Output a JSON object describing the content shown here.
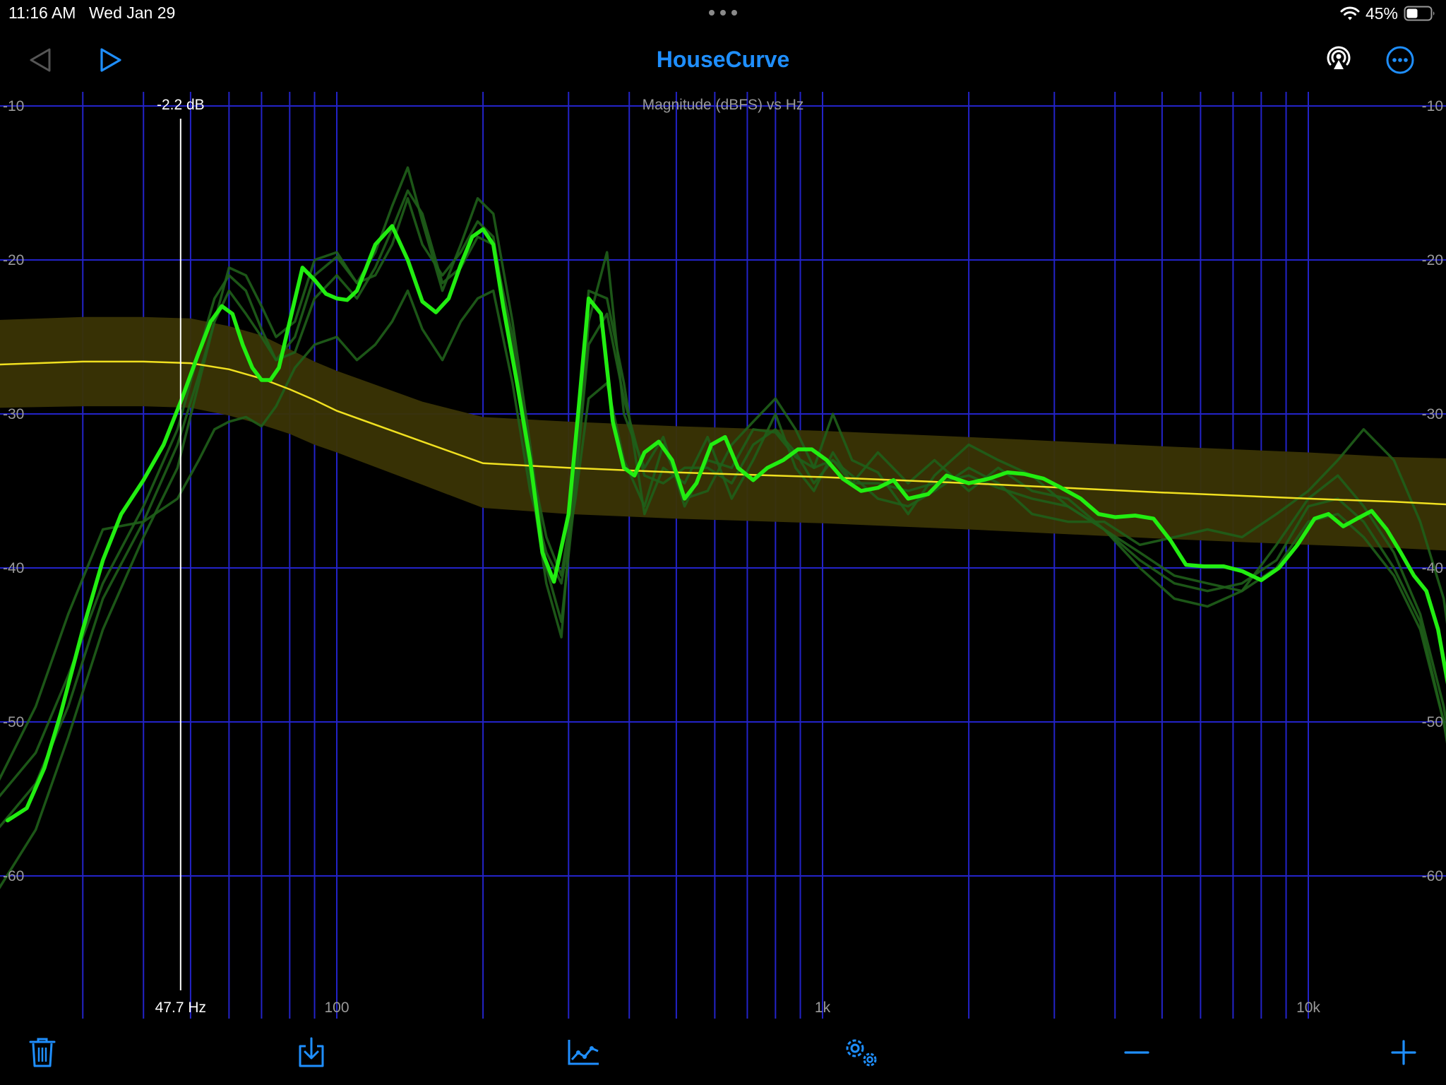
{
  "status_bar": {
    "time": "11:16 AM",
    "date": "Wed Jan 29",
    "battery": "45%"
  },
  "nav": {
    "title": "HouseCurve"
  },
  "icons": {
    "back": "back-triangle-icon",
    "play": "play-icon",
    "airplay": "airplay-icon",
    "more": "ellipsis-circle-icon",
    "delete": "trash-icon",
    "import": "import-tray-icon",
    "graph": "graph-icon",
    "settings": "settings-gears-icon",
    "zoom_out": "minus-icon",
    "zoom_in": "plus-icon"
  },
  "colors": {
    "accent": "#1f8fff",
    "grid": "#2323c8",
    "measurement": "#22ee11",
    "target": "#f0e020",
    "target_band": "#3a3405",
    "faded_measurements": "#1f5f1a"
  },
  "cursor": {
    "freq_label": "47.7 Hz",
    "db_label": "-2.2 dB"
  },
  "chart_data": {
    "type": "line",
    "title": "Magnitude (dBFS) vs Hz",
    "x_scale": "log",
    "xlim": [
      20,
      22000
    ],
    "ylim": [
      -67,
      -9
    ],
    "grid": true,
    "y_ticks": [
      "-10",
      "-20",
      "-30",
      "-40",
      "-50",
      "-60"
    ],
    "y_tick_values": [
      -10,
      -20,
      -30,
      -40,
      -50,
      -60
    ],
    "x_ticks": [
      "100",
      "1k",
      "10k"
    ],
    "x_tick_values": [
      100,
      1000,
      10000
    ],
    "cursor_hz": 47.7,
    "series": [
      {
        "role": "measurement",
        "x": [
          21,
          23,
          25,
          27,
          30,
          33,
          36,
          40,
          44,
          48,
          52,
          55,
          58,
          61,
          64,
          67,
          70,
          73,
          76,
          80,
          85,
          90,
          95,
          100,
          105,
          110,
          115,
          120,
          130,
          140,
          150,
          160,
          170,
          180,
          190,
          200,
          210,
          220,
          235,
          250,
          265,
          280,
          300,
          315,
          330,
          350,
          370,
          390,
          410,
          430,
          460,
          490,
          520,
          550,
          590,
          630,
          670,
          720,
          770,
          830,
          890,
          950,
          1020,
          1100,
          1200,
          1300,
          1400,
          1500,
          1650,
          1800,
          2000,
          2200,
          2400,
          2600,
          2850,
          3100,
          3400,
          3700,
          4000,
          4400,
          4800,
          5200,
          5600,
          6100,
          6700,
          7300,
          8000,
          8700,
          9500,
          10300,
          11000,
          11800,
          12600,
          13500,
          14500,
          15500,
          16500,
          17500,
          18500,
          19500,
          20500,
          22000
        ],
        "y": [
          -56.4,
          -55.6,
          -53.0,
          -49.5,
          -44.0,
          -39.5,
          -36.5,
          -34.3,
          -32.0,
          -29.0,
          -26.0,
          -24.0,
          -23.0,
          -23.5,
          -25.5,
          -27.0,
          -27.8,
          -27.8,
          -27.0,
          -24.0,
          -20.5,
          -21.3,
          -22.2,
          -22.5,
          -22.6,
          -22.0,
          -20.5,
          -19.0,
          -17.8,
          -20.0,
          -22.7,
          -23.4,
          -22.5,
          -20.3,
          -18.5,
          -18.0,
          -19.0,
          -23.0,
          -28.0,
          -33.0,
          -39.0,
          -40.9,
          -36.5,
          -29.5,
          -22.5,
          -23.5,
          -30.5,
          -33.5,
          -34.0,
          -32.5,
          -31.8,
          -33.0,
          -35.5,
          -34.5,
          -32.0,
          -31.5,
          -33.5,
          -34.3,
          -33.5,
          -33.0,
          -32.3,
          -32.3,
          -33.0,
          -34.2,
          -35.0,
          -34.8,
          -34.3,
          -35.5,
          -35.2,
          -34.0,
          -34.5,
          -34.2,
          -33.8,
          -33.9,
          -34.2,
          -34.8,
          -35.5,
          -36.5,
          -36.7,
          -36.6,
          -36.8,
          -38.2,
          -39.8,
          -39.9,
          -39.9,
          -40.2,
          -40.8,
          -40.0,
          -38.5,
          -36.8,
          -36.5,
          -37.3,
          -36.8,
          -36.3,
          -37.5,
          -39.0,
          -40.5,
          -41.5,
          -44.0,
          -48.0,
          -55.0,
          -64.5
        ]
      },
      {
        "role": "target",
        "x": [
          20,
          30,
          40,
          50,
          60,
          70,
          80,
          90,
          100,
          150,
          200,
          300,
          500,
          1000,
          2000,
          5000,
          10000,
          15000,
          20000,
          22000
        ],
        "y": [
          -26.8,
          -26.6,
          -26.6,
          -26.7,
          -27.1,
          -27.7,
          -28.4,
          -29.1,
          -29.8,
          -31.8,
          -33.2,
          -33.5,
          -33.8,
          -34.1,
          -34.5,
          -35.1,
          -35.5,
          -35.7,
          -35.9,
          -36.0
        ]
      },
      {
        "role": "target-band",
        "x": [
          20,
          30,
          40,
          50,
          60,
          70,
          80,
          90,
          100,
          150,
          200,
          300,
          500,
          1000,
          2000,
          5000,
          10000,
          15000,
          20000,
          22000
        ],
        "upper": [
          -23.9,
          -23.7,
          -23.7,
          -23.8,
          -24.3,
          -24.9,
          -25.8,
          -26.6,
          -27.2,
          -29.2,
          -30.2,
          -30.5,
          -30.8,
          -31.1,
          -31.5,
          -32.1,
          -32.5,
          -32.8,
          -32.9,
          -33.0
        ],
        "lower": [
          -29.6,
          -29.5,
          -29.5,
          -29.6,
          -30.1,
          -30.7,
          -31.3,
          -32.0,
          -32.5,
          -34.6,
          -36.1,
          -36.5,
          -36.8,
          -37.1,
          -37.5,
          -38.1,
          -38.5,
          -38.7,
          -38.9,
          -39.0
        ]
      },
      {
        "role": "faded",
        "x": [
          20,
          24,
          28,
          33,
          40,
          47,
          52,
          56,
          60,
          65,
          70,
          75,
          82,
          90,
          100,
          110,
          120,
          130,
          140,
          150,
          165,
          180,
          195,
          210,
          230,
          250,
          270,
          290,
          310,
          330,
          360,
          390,
          430,
          470,
          520,
          580,
          650,
          720,
          800,
          880,
          960,
          1050,
          1150,
          1300,
          1500,
          1700,
          2000,
          2300,
          2700,
          3200,
          3800,
          4500,
          5300,
          6200,
          7300,
          8600,
          10000,
          11500,
          13000,
          15000,
          17000,
          19000,
          21000,
          22000
        ],
        "y": [
          -55.0,
          -52.0,
          -47.0,
          -41.0,
          -36.0,
          -31.0,
          -26.0,
          -22.5,
          -21.0,
          -22.0,
          -24.5,
          -26.5,
          -25.0,
          -21.0,
          -19.8,
          -21.5,
          -19.5,
          -16.5,
          -14.0,
          -17.5,
          -22.0,
          -19.0,
          -16.0,
          -17.0,
          -24.0,
          -32.0,
          -40.0,
          -43.5,
          -35.0,
          -24.0,
          -19.5,
          -30.0,
          -33.5,
          -31.5,
          -36.0,
          -33.0,
          -33.5,
          -31.0,
          -31.2,
          -32.8,
          -33.5,
          -30.0,
          -33.0,
          -33.8,
          -36.5,
          -34.0,
          -32.0,
          -33.0,
          -34.0,
          -36.0,
          -37.5,
          -39.0,
          -40.5,
          -41.0,
          -41.5,
          -40.0,
          -37.0,
          -36.5,
          -38.0,
          -40.5,
          -44.0,
          -50.0,
          -58.0,
          -62.0
        ]
      },
      {
        "role": "faded",
        "x": [
          20,
          24,
          28,
          33,
          40,
          47,
          52,
          56,
          60,
          65,
          70,
          75,
          82,
          90,
          100,
          110,
          120,
          130,
          140,
          150,
          165,
          180,
          195,
          210,
          230,
          250,
          270,
          290,
          310,
          330,
          360,
          390,
          430,
          470,
          520,
          580,
          650,
          720,
          800,
          880,
          960,
          1050,
          1150,
          1300,
          1500,
          1700,
          2000,
          2300,
          2700,
          3200,
          3800,
          4500,
          5300,
          6200,
          7300,
          8600,
          10000,
          11500,
          13000,
          15000,
          17000,
          19000,
          21000,
          22000
        ],
        "y": [
          -61.0,
          -57.0,
          -51.0,
          -44.0,
          -38.0,
          -33.5,
          -28.0,
          -24.0,
          -20.5,
          -21.0,
          -23.0,
          -25.0,
          -24.0,
          -20.0,
          -19.5,
          -21.5,
          -21.0,
          -19.0,
          -16.0,
          -19.0,
          -21.0,
          -19.5,
          -17.5,
          -18.5,
          -26.0,
          -34.0,
          -41.0,
          -44.5,
          -33.0,
          -22.0,
          -22.5,
          -28.0,
          -36.5,
          -33.5,
          -34.5,
          -31.5,
          -35.5,
          -33.0,
          -30.0,
          -33.5,
          -35.0,
          -32.5,
          -34.5,
          -32.5,
          -34.5,
          -33.0,
          -35.0,
          -33.5,
          -35.0,
          -35.5,
          -37.5,
          -40.0,
          -42.0,
          -42.5,
          -41.5,
          -38.5,
          -35.5,
          -34.0,
          -36.0,
          -39.0,
          -43.0,
          -49.0,
          -57.0,
          -60.0
        ]
      },
      {
        "role": "faded",
        "x": [
          20,
          24,
          28,
          33,
          40,
          47,
          52,
          56,
          60,
          65,
          70,
          75,
          82,
          90,
          100,
          110,
          120,
          130,
          140,
          150,
          165,
          180,
          195,
          210,
          230,
          250,
          270,
          290,
          310,
          330,
          360,
          390,
          430,
          470,
          520,
          580,
          650,
          720,
          800,
          880,
          960,
          1050,
          1150,
          1300,
          1500,
          1700,
          2000,
          2300,
          2700,
          3200,
          3800,
          4500,
          5300,
          6200,
          7300,
          8600,
          10000,
          11500,
          13000,
          15000,
          17000,
          19000,
          21000,
          22000
        ],
        "y": [
          -54.0,
          -49.0,
          -43.0,
          -37.5,
          -37.0,
          -35.5,
          -33.0,
          -31.0,
          -30.5,
          -30.2,
          -30.8,
          -29.5,
          -27.0,
          -25.5,
          -25.0,
          -26.5,
          -25.5,
          -24.0,
          -22.0,
          -24.5,
          -26.5,
          -24.0,
          -22.5,
          -22.0,
          -28.0,
          -35.0,
          -39.0,
          -41.0,
          -35.5,
          -29.0,
          -28.0,
          -33.0,
          -36.0,
          -32.0,
          -35.5,
          -35.0,
          -32.0,
          -30.5,
          -29.0,
          -31.0,
          -33.5,
          -33.0,
          -34.0,
          -35.5,
          -36.0,
          -35.0,
          -33.5,
          -34.5,
          -36.5,
          -37.0,
          -37.0,
          -38.5,
          -38.0,
          -37.5,
          -38.0,
          -36.5,
          -35.0,
          -33.0,
          -31.0,
          -33.0,
          -37.0,
          -42.0,
          -52.0,
          -58.0
        ]
      },
      {
        "role": "faded",
        "x": [
          20,
          24,
          28,
          33,
          40,
          47,
          52,
          56,
          60,
          65,
          70,
          75,
          82,
          90,
          100,
          110,
          120,
          130,
          140,
          150,
          165,
          180,
          195,
          210,
          230,
          250,
          270,
          290,
          310,
          330,
          360,
          390,
          430,
          470,
          520,
          580,
          650,
          720,
          800,
          880,
          960,
          1050,
          1150,
          1300,
          1500,
          1700,
          2000,
          2300,
          2700,
          3200,
          3800,
          4500,
          5300,
          6200,
          7300,
          8600,
          10000,
          11500,
          13000,
          15000,
          17000,
          19000,
          21000,
          22000
        ],
        "y": [
          -57.0,
          -54.0,
          -49.0,
          -42.0,
          -37.0,
          -32.0,
          -27.5,
          -24.0,
          -22.0,
          -23.5,
          -25.0,
          -26.5,
          -26.0,
          -22.5,
          -21.0,
          -22.5,
          -20.5,
          -18.0,
          -15.5,
          -17.0,
          -21.5,
          -20.5,
          -18.5,
          -19.0,
          -25.0,
          -33.0,
          -38.0,
          -40.5,
          -34.5,
          -25.5,
          -23.5,
          -29.0,
          -34.0,
          -34.5,
          -33.5,
          -33.5,
          -34.5,
          -32.0,
          -31.0,
          -32.5,
          -34.5,
          -33.0,
          -34.5,
          -34.5,
          -35.0,
          -34.5,
          -34.0,
          -34.8,
          -35.5,
          -36.0,
          -37.5,
          -39.5,
          -41.0,
          -41.5,
          -41.0,
          -39.5,
          -36.0,
          -35.5,
          -37.0,
          -40.0,
          -43.5,
          -50.0,
          -58.5,
          -63.0
        ]
      }
    ]
  }
}
